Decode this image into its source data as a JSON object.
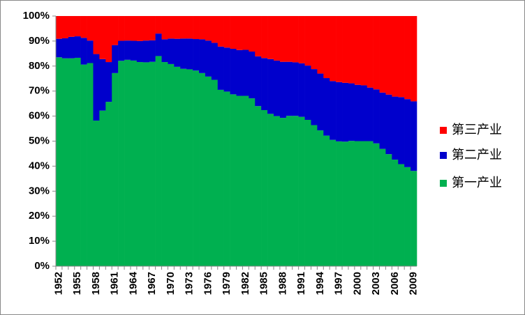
{
  "chart_data": {
    "type": "stacked_bar_100",
    "categories": [
      "1952",
      null,
      null,
      "1955",
      null,
      null,
      "1958",
      null,
      null,
      "1961",
      null,
      null,
      "1964",
      null,
      null,
      "1967",
      null,
      null,
      "1970",
      null,
      null,
      "1973",
      null,
      null,
      "1976",
      null,
      null,
      "1979",
      null,
      null,
      "1982",
      null,
      null,
      "1985",
      null,
      null,
      "1988",
      null,
      null,
      "1991",
      null,
      null,
      "1994",
      null,
      null,
      "1997",
      null,
      null,
      "2000",
      null,
      null,
      "2003",
      null,
      null,
      "2006",
      null,
      null,
      "2009"
    ],
    "series": [
      {
        "name": "第一产业",
        "color": "#00b050",
        "values": [
          83.5,
          83.1,
          83.1,
          83.3,
          80.6,
          81.2,
          58.2,
          62.2,
          65.7,
          77.2,
          82.1,
          82.5,
          82.2,
          81.6,
          81.5,
          81.7,
          84.0,
          81.6,
          80.8,
          79.7,
          78.9,
          78.7,
          78.2,
          77.2,
          75.8,
          74.5,
          70.5,
          69.8,
          68.7,
          68.1,
          68.1,
          67.1,
          64.0,
          62.4,
          60.9,
          60.0,
          59.3,
          60.1,
          60.1,
          59.7,
          58.5,
          56.4,
          54.3,
          52.2,
          50.5,
          49.9,
          49.8,
          50.1,
          50.0,
          50.0,
          50.0,
          49.1,
          46.9,
          44.8,
          42.6,
          40.8,
          39.6,
          38.1
        ]
      },
      {
        "name": "第二产业",
        "color": "#0000cc",
        "values": [
          7.4,
          8.0,
          8.6,
          8.6,
          10.7,
          9.0,
          26.6,
          20.6,
          15.9,
          11.2,
          8.0,
          7.7,
          7.9,
          8.4,
          8.7,
          8.6,
          9.0,
          9.1,
          10.2,
          11.2,
          12.1,
          12.3,
          12.6,
          13.5,
          14.4,
          14.8,
          17.3,
          17.6,
          18.2,
          18.3,
          18.4,
          18.7,
          19.9,
          20.8,
          21.9,
          22.2,
          22.4,
          21.6,
          21.4,
          21.4,
          21.7,
          22.4,
          22.7,
          23.0,
          23.5,
          23.7,
          23.5,
          23.0,
          22.5,
          22.3,
          21.4,
          21.6,
          22.5,
          23.8,
          25.2,
          26.8,
          27.2,
          27.8
        ]
      },
      {
        "name": "第三产业",
        "color": "#ff0000",
        "values": [
          9.1,
          8.9,
          8.3,
          8.1,
          8.7,
          9.8,
          15.2,
          17.2,
          18.4,
          11.6,
          9.9,
          9.8,
          9.9,
          10.0,
          9.8,
          9.7,
          7.0,
          9.3,
          9.0,
          9.1,
          9.0,
          9.0,
          9.2,
          9.3,
          9.8,
          10.7,
          12.2,
          12.6,
          13.1,
          13.6,
          13.5,
          14.2,
          16.1,
          16.8,
          17.2,
          17.8,
          18.3,
          18.3,
          18.5,
          18.9,
          19.8,
          21.2,
          23.0,
          24.8,
          26.0,
          26.4,
          26.7,
          26.9,
          27.5,
          27.7,
          28.6,
          29.3,
          30.6,
          31.4,
          32.2,
          32.4,
          33.2,
          34.1
        ]
      }
    ],
    "ylim": [
      0,
      100
    ],
    "yticks": [
      {
        "value": 0,
        "label": "0%"
      },
      {
        "value": 10,
        "label": "10%"
      },
      {
        "value": 20,
        "label": "20%"
      },
      {
        "value": 30,
        "label": "30%"
      },
      {
        "value": 40,
        "label": "40%"
      },
      {
        "value": 50,
        "label": "50%"
      },
      {
        "value": 60,
        "label": "60%"
      },
      {
        "value": 70,
        "label": "70%"
      },
      {
        "value": 80,
        "label": "80%"
      },
      {
        "value": 90,
        "label": "90%"
      },
      {
        "value": 100,
        "label": "100%"
      }
    ],
    "grid": false,
    "legend": "right"
  }
}
